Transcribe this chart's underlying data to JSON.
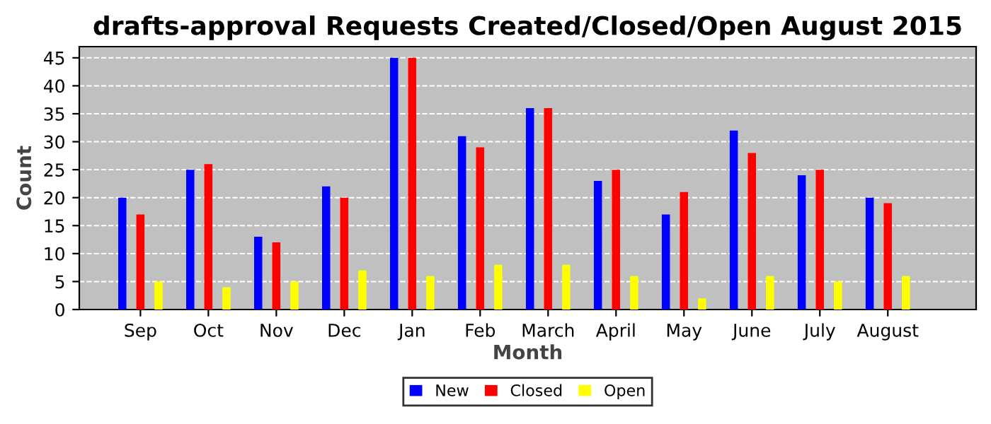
{
  "chart_data": {
    "type": "bar",
    "title": "drafts-approval Requests Created/Closed/Open August 2015",
    "xlabel": "Month",
    "ylabel": "Count",
    "categories": [
      "Sep",
      "Oct",
      "Nov",
      "Dec",
      "Jan",
      "Feb",
      "March",
      "April",
      "May",
      "June",
      "July",
      "August"
    ],
    "series": [
      {
        "name": "New",
        "color": "#0000ff",
        "values": [
          20,
          25,
          13,
          22,
          45,
          31,
          36,
          23,
          17,
          32,
          24,
          20
        ]
      },
      {
        "name": "Closed",
        "color": "#ff0000",
        "values": [
          17,
          26,
          12,
          20,
          45,
          29,
          36,
          25,
          21,
          28,
          25,
          19
        ]
      },
      {
        "name": "Open",
        "color": "#ffff00",
        "values": [
          5,
          4,
          5,
          7,
          6,
          8,
          8,
          6,
          2,
          6,
          5,
          6
        ]
      }
    ],
    "ylim": [
      0,
      47
    ],
    "yticks": [
      0,
      5,
      10,
      15,
      20,
      25,
      30,
      35,
      40,
      45
    ],
    "grid": "y",
    "legend": "bottom"
  }
}
